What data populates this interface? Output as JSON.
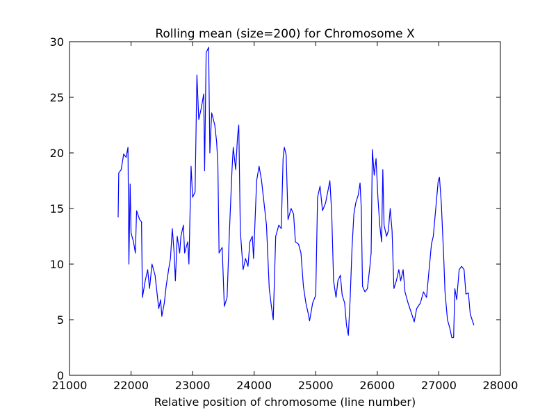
{
  "chart_data": {
    "type": "line",
    "title": "Rolling mean (size=200) for Chromosome X",
    "x_label": "Relative position of chromosome (line number)",
    "xlim": [
      21000,
      28000
    ],
    "xticks": [
      21000,
      22000,
      23000,
      24000,
      25000,
      26000,
      27000,
      28000
    ],
    "ylim": [
      0,
      30
    ],
    "yticks": [
      0,
      5,
      10,
      15,
      20,
      25,
      30
    ],
    "grid": false,
    "series": [
      {
        "color": "#0000ff",
        "x": [
          21790,
          21800,
          21840,
          21880,
          21920,
          21950,
          21965,
          21985,
          22000,
          22040,
          22070,
          22090,
          22140,
          22170,
          22185,
          22230,
          22270,
          22300,
          22340,
          22390,
          22420,
          22450,
          22480,
          22500,
          22540,
          22570,
          22610,
          22640,
          22670,
          22700,
          22720,
          22750,
          22790,
          22810,
          22850,
          22870,
          22920,
          22940,
          22975,
          23000,
          23040,
          23070,
          23100,
          23140,
          23180,
          23195,
          23220,
          23260,
          23280,
          23310,
          23360,
          23390,
          23410,
          23430,
          23480,
          23515,
          23560,
          23595,
          23640,
          23660,
          23700,
          23730,
          23750,
          23775,
          23820,
          23860,
          23900,
          23930,
          23970,
          23990,
          24040,
          24080,
          24120,
          24170,
          24200,
          24245,
          24280,
          24310,
          24350,
          24400,
          24440,
          24470,
          24490,
          24520,
          24550,
          24600,
          24640,
          24670,
          24720,
          24760,
          24800,
          24840,
          24880,
          24900,
          24950,
          25000,
          25030,
          25070,
          25110,
          25160,
          25230,
          25260,
          25290,
          25330,
          25360,
          25400,
          25430,
          25470,
          25500,
          25530,
          25560,
          25590,
          25620,
          25650,
          25690,
          25720,
          25740,
          25760,
          25800,
          25840,
          25880,
          25900,
          25920,
          25950,
          25980,
          26010,
          26040,
          26070,
          26090,
          26110,
          26150,
          26180,
          26210,
          26240,
          26270,
          26310,
          26350,
          26380,
          26420,
          26450,
          26500,
          26560,
          26600,
          26640,
          26700,
          26750,
          26800,
          26880,
          26910,
          26950,
          26990,
          27010,
          27040,
          27080,
          27100,
          27140,
          27180,
          27210,
          27240,
          27260,
          27290,
          27330,
          27370,
          27410,
          27440,
          27480,
          27510,
          27540,
          27570
        ],
        "values": [
          14.2,
          18.2,
          18.5,
          19.9,
          19.6,
          20.5,
          10.0,
          17.2,
          12.8,
          12.0,
          11.0,
          14.8,
          14.0,
          13.8,
          7.0,
          8.5,
          9.5,
          7.8,
          10.0,
          9.0,
          7.5,
          6.0,
          6.8,
          5.3,
          6.5,
          8.0,
          9.5,
          10.5,
          13.2,
          11.0,
          8.5,
          12.5,
          11.0,
          12.5,
          13.5,
          11.0,
          12.0,
          10.0,
          18.8,
          16.0,
          16.5,
          27.0,
          23.0,
          24.0,
          25.3,
          18.4,
          29.0,
          29.5,
          20.0,
          23.6,
          22.5,
          21.0,
          19.0,
          11.0,
          11.5,
          6.2,
          7.0,
          12.5,
          18.5,
          20.5,
          18.5,
          21.5,
          22.5,
          13.0,
          9.5,
          10.5,
          9.8,
          12.0,
          12.5,
          10.5,
          17.5,
          18.8,
          17.5,
          15.0,
          13.5,
          7.8,
          6.2,
          5.0,
          12.5,
          13.5,
          13.2,
          19.5,
          20.5,
          19.8,
          14.0,
          15.0,
          14.5,
          12.0,
          11.8,
          11.0,
          8.0,
          6.5,
          5.5,
          4.9,
          6.5,
          7.2,
          16.0,
          17.0,
          14.8,
          15.5,
          17.5,
          14.5,
          8.5,
          7.0,
          8.5,
          9.0,
          7.2,
          6.5,
          4.5,
          3.6,
          7.0,
          11.5,
          14.5,
          15.5,
          16.2,
          17.3,
          15.0,
          8.0,
          7.5,
          7.8,
          9.8,
          11.0,
          20.3,
          18.0,
          19.5,
          16.0,
          13.5,
          12.0,
          18.5,
          13.5,
          12.5,
          13.0,
          15.0,
          13.0,
          7.8,
          8.5,
          9.5,
          8.5,
          9.5,
          7.5,
          6.5,
          5.5,
          4.8,
          6.0,
          6.5,
          7.5,
          7.0,
          11.8,
          12.5,
          15.0,
          17.5,
          17.8,
          15.5,
          10.5,
          7.5,
          5.0,
          4.2,
          3.4,
          3.4,
          7.8,
          6.8,
          9.5,
          9.8,
          9.5,
          7.3,
          7.4,
          5.5,
          5.0,
          4.5
        ]
      }
    ]
  }
}
